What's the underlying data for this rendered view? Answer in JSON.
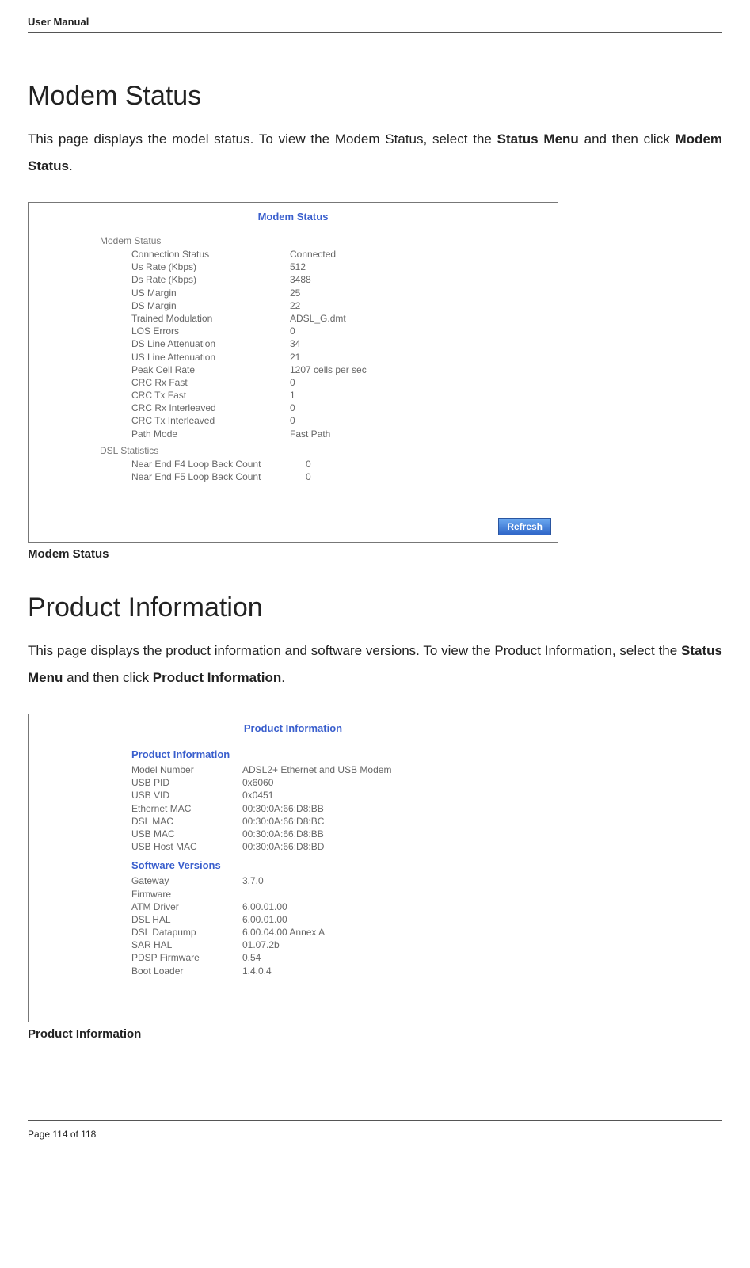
{
  "header": {
    "title": "User Manual"
  },
  "footer": {
    "text": "Page 114 of 118"
  },
  "section1": {
    "title": "Modem Status",
    "para_pre": "This page displays the model status. To view the Modem Status, select the ",
    "bold1": "Status Menu",
    "para_mid": " and then click ",
    "bold2": "Modem Status",
    "para_post": ".",
    "caption": "Modem Status",
    "screenshot": {
      "title": "Modem Status",
      "group1": "Modem Status",
      "rows1": [
        {
          "label": "Connection Status",
          "value": "Connected"
        },
        {
          "label": "Us Rate (Kbps)",
          "value": "512"
        },
        {
          "label": "Ds Rate (Kbps)",
          "value": "3488"
        },
        {
          "label": "US Margin",
          "value": "25"
        },
        {
          "label": "DS Margin",
          "value": "22"
        },
        {
          "label": "Trained Modulation",
          "value": "ADSL_G.dmt"
        },
        {
          "label": "LOS Errors",
          "value": "0"
        },
        {
          "label": "DS Line Attenuation",
          "value": "34"
        },
        {
          "label": "US Line Attenuation",
          "value": "21"
        },
        {
          "label": "Peak Cell Rate",
          "value": "1207 cells per sec"
        },
        {
          "label": "CRC Rx Fast",
          "value": "0"
        },
        {
          "label": "CRC Tx Fast",
          "value": "1"
        },
        {
          "label": "CRC Rx Interleaved",
          "value": "0"
        },
        {
          "label": "CRC Tx Interleaved",
          "value": "0"
        },
        {
          "label": "Path Mode",
          "value": "Fast Path"
        }
      ],
      "group2": "DSL Statistics",
      "rows2": [
        {
          "label": "Near End F4 Loop Back Count",
          "value": "0"
        },
        {
          "label": "Near End F5 Loop Back Count",
          "value": "0"
        }
      ],
      "refresh": "Refresh"
    }
  },
  "section2": {
    "title": "Product Information",
    "para_pre": "This page displays the product information and software versions. To view the Product Information, select the ",
    "bold1": "Status Menu",
    "para_mid": " and then click ",
    "bold2": "Product Information",
    "para_post": ".",
    "caption": "Product Information",
    "screenshot": {
      "title": "Product Information",
      "sub1": "Product Information",
      "rows1": [
        {
          "label": "Model Number",
          "value": "ADSL2+ Ethernet and USB Modem"
        },
        {
          "label": "USB PID",
          "value": "0x6060"
        },
        {
          "label": "USB VID",
          "value": "0x0451"
        },
        {
          "label": "Ethernet MAC",
          "value": "00:30:0A:66:D8:BB"
        },
        {
          "label": "DSL MAC",
          "value": "00:30:0A:66:D8:BC"
        },
        {
          "label": "USB MAC",
          "value": "00:30:0A:66:D8:BB"
        },
        {
          "label": "USB Host MAC",
          "value": "00:30:0A:66:D8:BD"
        }
      ],
      "sub2": "Software Versions",
      "rows2": [
        {
          "label": "Gateway",
          "value": "3.7.0"
        },
        {
          "label": "Firmware",
          "value": ""
        },
        {
          "label": "ATM Driver",
          "value": "6.00.01.00"
        },
        {
          "label": "DSL HAL",
          "value": "6.00.01.00"
        },
        {
          "label": "DSL Datapump",
          "value": "6.00.04.00 Annex A"
        },
        {
          "label": "SAR HAL",
          "value": "01.07.2b"
        },
        {
          "label": "PDSP Firmware",
          "value": "0.54"
        },
        {
          "label": "Boot Loader",
          "value": "1.4.0.4"
        }
      ]
    }
  }
}
